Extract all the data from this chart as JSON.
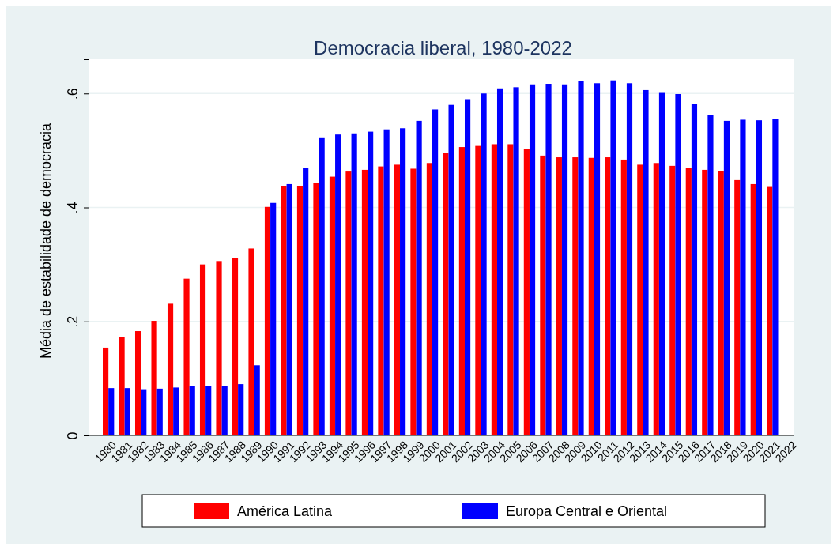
{
  "chart_data": {
    "type": "bar",
    "title": "Democracia liberal, 1980-2022",
    "ylabel": "Média de estabilidade de democracia",
    "categories": [
      "1980",
      "1981",
      "1982",
      "1983",
      "1984",
      "1985",
      "1986",
      "1987",
      "1988",
      "1989",
      "1990",
      "1991",
      "1992",
      "1993",
      "1994",
      "1995",
      "1996",
      "1997",
      "1998",
      "1999",
      "2000",
      "2001",
      "2002",
      "2003",
      "2004",
      "2005",
      "2006",
      "2007",
      "2008",
      "2009",
      "2010",
      "2011",
      "2012",
      "2013",
      "2014",
      "2015",
      "2016",
      "2017",
      "2018",
      "2019",
      "2020",
      "2021",
      "2022"
    ],
    "series": [
      {
        "name": "América Latina",
        "color": "#ff0000",
        "values": [
          0.154,
          0.172,
          0.183,
          0.201,
          0.231,
          0.275,
          0.3,
          0.306,
          0.311,
          0.328,
          0.401,
          0.438,
          0.438,
          0.443,
          0.454,
          0.463,
          0.466,
          0.472,
          0.475,
          0.468,
          0.478,
          0.495,
          0.506,
          0.508,
          0.511,
          0.511,
          0.502,
          0.491,
          0.488,
          0.488,
          0.487,
          0.488,
          0.484,
          0.475,
          0.478,
          0.473,
          0.47,
          0.466,
          0.464,
          0.448,
          0.441,
          0.436,
          null
        ]
      },
      {
        "name": "Europa Central e Oriental",
        "color": "#0000ff",
        "values": [
          0.083,
          0.083,
          0.081,
          0.082,
          0.084,
          0.086,
          0.086,
          0.086,
          0.09,
          0.123,
          0.408,
          0.441,
          0.469,
          0.523,
          0.528,
          0.53,
          0.533,
          0.537,
          0.539,
          0.552,
          0.572,
          0.58,
          0.59,
          0.6,
          0.609,
          0.611,
          0.616,
          0.617,
          0.616,
          0.622,
          0.618,
          0.623,
          0.618,
          0.606,
          0.601,
          0.599,
          0.581,
          0.562,
          0.552,
          0.554,
          0.553,
          0.555,
          null
        ]
      }
    ],
    "ylim": [
      0,
      0.66
    ],
    "yticks": [
      0,
      {
        "value": 0.2,
        "label": ".2"
      },
      {
        "value": 0.4,
        "label": ".4"
      },
      {
        "value": 0.6,
        "label": ".6"
      }
    ],
    "grid": "y",
    "legend": "bottom"
  }
}
